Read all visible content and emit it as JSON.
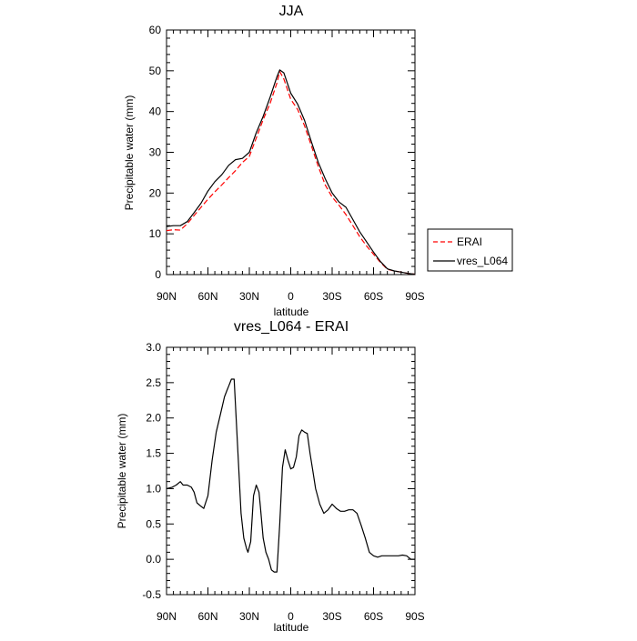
{
  "chart_data": [
    {
      "type": "line",
      "title": "JJA",
      "xlabel": "latitude",
      "ylabel": "Precipitable water (mm)",
      "xlim": [
        90,
        -90
      ],
      "ylim": [
        0,
        60
      ],
      "xticks": [
        90,
        60,
        30,
        0,
        -30,
        -60,
        -90
      ],
      "xtick_labels": [
        "90N",
        "60N",
        "30N",
        "0",
        "30S",
        "60S",
        "90S"
      ],
      "yticks": [
        0,
        10,
        20,
        30,
        40,
        50,
        60
      ],
      "ytick_labels": [
        "0",
        "10",
        "20",
        "30",
        "40",
        "50",
        "60"
      ],
      "legend": {
        "position": "right",
        "entries": [
          "ERAI",
          "vres_L064"
        ]
      },
      "series": [
        {
          "name": "ERAI",
          "color": "#ff0000",
          "dash": "dashed",
          "x": [
            90,
            85,
            80,
            75,
            70,
            65,
            60,
            55,
            50,
            45,
            40,
            35,
            30,
            25,
            20,
            15,
            10,
            8,
            5,
            0,
            -5,
            -10,
            -15,
            -20,
            -25,
            -30,
            -35,
            -40,
            -45,
            -50,
            -55,
            -60,
            -65,
            -70,
            -75,
            -80,
            -85,
            -90
          ],
          "values": [
            10.8,
            11.0,
            10.9,
            12.5,
            14.5,
            16.5,
            18.5,
            20.3,
            22.0,
            23.8,
            25.5,
            27.5,
            29.0,
            33.5,
            38.0,
            42.0,
            47.0,
            49.8,
            48.0,
            43.0,
            40.5,
            36.5,
            31.5,
            26.5,
            22.0,
            19.0,
            17.0,
            14.7,
            12.0,
            9.3,
            7.0,
            5.0,
            3.0,
            1.3,
            0.9,
            0.6,
            0.3,
            0.1
          ]
        },
        {
          "name": "vres_L064",
          "color": "#000000",
          "dash": "solid",
          "x": [
            90,
            85,
            80,
            75,
            70,
            65,
            60,
            55,
            50,
            45,
            40,
            35,
            30,
            25,
            20,
            15,
            10,
            8,
            5,
            0,
            -5,
            -10,
            -15,
            -20,
            -25,
            -30,
            -35,
            -40,
            -45,
            -50,
            -55,
            -60,
            -65,
            -70,
            -75,
            -80,
            -85,
            -90
          ],
          "values": [
            11.8,
            12.0,
            12.0,
            13.0,
            15.2,
            17.5,
            20.5,
            22.8,
            24.5,
            26.8,
            28.2,
            28.5,
            30.0,
            34.8,
            38.8,
            43.5,
            48.5,
            50.2,
            49.5,
            44.5,
            41.8,
            37.8,
            32.5,
            27.5,
            23.5,
            20.0,
            17.8,
            16.5,
            13.5,
            10.5,
            8.0,
            5.5,
            3.2,
            1.4,
            0.9,
            0.6,
            0.3,
            0.1
          ]
        }
      ]
    },
    {
      "type": "line",
      "title": "vres_L064 - ERAI",
      "xlabel": "latitude",
      "ylabel": "Precipitable water (mm)",
      "xlim": [
        90,
        -90
      ],
      "ylim": [
        -0.5,
        3.0
      ],
      "xticks": [
        90,
        60,
        30,
        0,
        -30,
        -60,
        -90
      ],
      "xtick_labels": [
        "90N",
        "60N",
        "30N",
        "0",
        "30S",
        "60S",
        "90S"
      ],
      "yticks": [
        -0.5,
        0.0,
        0.5,
        1.0,
        1.5,
        2.0,
        2.5,
        3.0
      ],
      "ytick_labels": [
        "-0.5",
        "0.0",
        "0.5",
        "1.0",
        "1.5",
        "2.0",
        "2.5",
        "3.0"
      ],
      "series": [
        {
          "name": "vres_L064 - ERAI",
          "color": "#000000",
          "dash": "solid",
          "x": [
            90,
            86,
            83,
            80,
            78,
            75,
            72,
            70,
            68,
            65,
            63,
            60,
            57,
            54,
            51,
            48,
            46,
            45,
            44,
            43,
            41,
            38,
            36,
            34,
            32,
            31,
            29,
            27,
            25,
            23,
            22,
            20,
            18,
            16,
            14,
            12,
            10,
            8,
            6,
            4,
            2,
            0,
            -2,
            -4,
            -6,
            -8,
            -10,
            -12,
            -14,
            -16,
            -18,
            -21,
            -24,
            -27,
            -30,
            -33,
            -36,
            -39,
            -42,
            -45,
            -48,
            -51,
            -54,
            -57,
            -60,
            -63,
            -66,
            -69,
            -72,
            -75,
            -78,
            -81,
            -84,
            -87,
            -90
          ],
          "values": [
            1.0,
            1.02,
            1.05,
            1.1,
            1.05,
            1.05,
            1.02,
            0.95,
            0.8,
            0.75,
            0.72,
            0.9,
            1.4,
            1.8,
            2.05,
            2.3,
            2.4,
            2.45,
            2.5,
            2.55,
            2.55,
            1.4,
            0.65,
            0.3,
            0.15,
            0.1,
            0.25,
            0.9,
            1.05,
            0.95,
            0.75,
            0.3,
            0.1,
            0.0,
            -0.15,
            -0.18,
            -0.18,
            0.5,
            1.3,
            1.55,
            1.4,
            1.28,
            1.3,
            1.45,
            1.75,
            1.83,
            1.8,
            1.78,
            1.5,
            1.25,
            1.0,
            0.78,
            0.65,
            0.7,
            0.78,
            0.72,
            0.68,
            0.68,
            0.7,
            0.7,
            0.65,
            0.48,
            0.3,
            0.1,
            0.05,
            0.03,
            0.05,
            0.05,
            0.05,
            0.05,
            0.05,
            0.06,
            0.05,
            0.0,
            0.0
          ]
        }
      ]
    }
  ]
}
